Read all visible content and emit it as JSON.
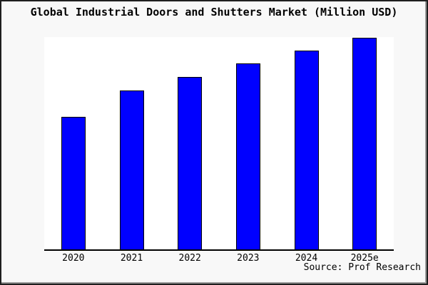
{
  "colors": {
    "figure_background": "#f8f8f8",
    "plot_background": "#ffffff",
    "frame_border": "#1f1f1f",
    "bar_fill": "#0000ff",
    "bar_border": "#000000",
    "axis_line": "#000000",
    "text": "#000000"
  },
  "chart_data": {
    "type": "bar",
    "title": "Global Industrial Doors and Shutters Market (Million USD)",
    "categories": [
      "2020",
      "2021",
      "2022",
      "2023",
      "2024",
      "2025e"
    ],
    "values": [
      188,
      225,
      244,
      263,
      281,
      299
    ],
    "value_note": "y-axis is unlabeled; values are relative heights estimated from pixels",
    "xlabel": "",
    "ylabel": "",
    "ylim": [
      0,
      300
    ],
    "grid": false,
    "legend": false,
    "source": "Source: Prof Research"
  }
}
